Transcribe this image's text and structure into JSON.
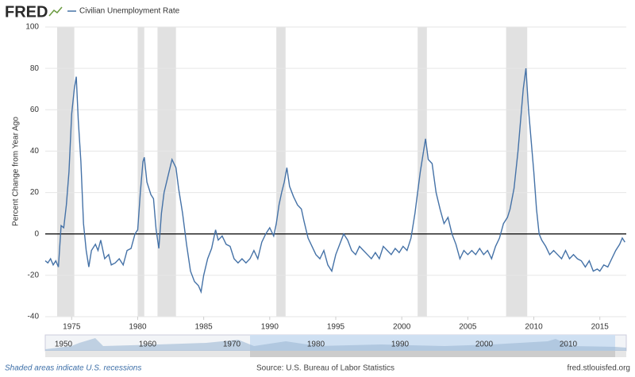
{
  "logo": "FRED",
  "footer": {
    "note": "Shaded areas indicate U.S. recessions",
    "source": "Source: U.S. Bureau of Labor Statistics",
    "site": "fred.stlouisfed.org"
  },
  "navigator": {
    "labels": [
      1950,
      1960,
      1970,
      1980,
      1990,
      2000,
      2010
    ]
  },
  "chart_data": {
    "type": "line",
    "y_label": "Percent Change from Year Ago",
    "series": [
      {
        "name": "Civilian Unemployment Rate",
        "color": "#4572a7",
        "values": [
          -13,
          -14,
          -12,
          -15,
          -13,
          -16,
          4,
          3,
          14,
          30,
          58,
          70,
          76,
          55,
          35,
          5,
          -8,
          -16,
          -8,
          -5,
          -8,
          -3,
          -12,
          -10,
          -15,
          -14,
          -12,
          -15,
          -8,
          -7,
          0,
          2,
          20,
          35,
          37,
          25,
          19,
          17,
          2,
          -7,
          10,
          20,
          28,
          36,
          32,
          22,
          10,
          -5,
          -18,
          -23,
          -25,
          -28,
          -20,
          -12,
          -7,
          2,
          -3,
          -1,
          -5,
          -6,
          -12,
          -14,
          -12,
          -14,
          -12,
          -8,
          -12,
          -4,
          0,
          3,
          -1,
          5,
          14,
          20,
          25,
          32,
          23,
          18,
          14,
          12,
          6,
          -2,
          -6,
          -10,
          -12,
          -8,
          -15,
          -18,
          -10,
          -5,
          0,
          -3,
          -8,
          -10,
          -6,
          -8,
          -10,
          -12,
          -9,
          -12,
          -6,
          -8,
          -10,
          -7,
          -9,
          -6,
          -8,
          -2,
          10,
          20,
          30,
          38,
          46,
          36,
          34,
          20,
          12,
          5,
          8,
          0,
          -5,
          -12,
          -8,
          -10,
          -8,
          -10,
          -7,
          -10,
          -8,
          -12,
          -6,
          -2,
          5,
          8,
          12,
          22,
          40,
          55,
          70,
          80,
          60,
          45,
          30,
          12,
          0,
          -3,
          -6,
          -10,
          -8,
          -10,
          -12,
          -8,
          -12,
          -10,
          -12,
          -13,
          -16,
          -13,
          -18,
          -17,
          -18,
          -15,
          -16,
          -12,
          -8,
          -5,
          -2,
          -4
        ]
      }
    ],
    "x": [
      1973.0,
      1973.2,
      1973.4,
      1973.6,
      1973.8,
      1974.0,
      1974.2,
      1974.4,
      1974.6,
      1974.8,
      1975.0,
      1975.2,
      1975.35,
      1975.5,
      1975.7,
      1975.9,
      1976.1,
      1976.3,
      1976.5,
      1976.8,
      1977.0,
      1977.2,
      1977.5,
      1977.8,
      1978.0,
      1978.3,
      1978.6,
      1978.9,
      1979.2,
      1979.5,
      1979.8,
      1980.0,
      1980.2,
      1980.4,
      1980.5,
      1980.7,
      1981.0,
      1981.2,
      1981.4,
      1981.6,
      1981.8,
      1982.0,
      1982.3,
      1982.6,
      1982.9,
      1983.1,
      1983.4,
      1983.7,
      1984.0,
      1984.3,
      1984.6,
      1984.8,
      1985.0,
      1985.3,
      1985.6,
      1985.9,
      1986.1,
      1986.4,
      1986.7,
      1987.0,
      1987.3,
      1987.6,
      1987.9,
      1988.2,
      1988.5,
      1988.8,
      1989.1,
      1989.4,
      1989.7,
      1990.0,
      1990.3,
      1990.5,
      1990.7,
      1990.9,
      1991.1,
      1991.3,
      1991.5,
      1991.8,
      1992.1,
      1992.4,
      1992.6,
      1992.9,
      1993.2,
      1993.5,
      1993.8,
      1994.1,
      1994.4,
      1994.7,
      1995.0,
      1995.3,
      1995.6,
      1995.9,
      1996.2,
      1996.5,
      1996.8,
      1997.1,
      1997.4,
      1997.7,
      1998.0,
      1998.3,
      1998.6,
      1998.9,
      1999.2,
      1999.5,
      1999.8,
      2000.1,
      2000.4,
      2000.7,
      2001.0,
      2001.2,
      2001.4,
      2001.6,
      2001.8,
      2002.0,
      2002.3,
      2002.6,
      2002.9,
      2003.2,
      2003.5,
      2003.8,
      2004.1,
      2004.4,
      2004.7,
      2005.0,
      2005.3,
      2005.6,
      2005.9,
      2006.2,
      2006.5,
      2006.8,
      2007.1,
      2007.4,
      2007.7,
      2008.0,
      2008.2,
      2008.5,
      2008.8,
      2009.0,
      2009.2,
      2009.4,
      2009.6,
      2009.8,
      2010.0,
      2010.2,
      2010.4,
      2010.6,
      2010.9,
      2011.2,
      2011.5,
      2011.8,
      2012.1,
      2012.4,
      2012.7,
      2013.0,
      2013.3,
      2013.6,
      2013.9,
      2014.2,
      2014.5,
      2014.8,
      2015.0,
      2015.3,
      2015.6,
      2015.9,
      2016.2,
      2016.5,
      2016.7,
      2016.9
    ],
    "recessions": [
      [
        1973.9,
        1975.2
      ],
      [
        1980.0,
        1980.5
      ],
      [
        1981.5,
        1982.9
      ],
      [
        1990.5,
        1991.2
      ],
      [
        2001.2,
        2001.9
      ],
      [
        2007.9,
        2009.5
      ]
    ],
    "recession_color": "#e1e1e1",
    "xlim": [
      1973,
      2017
    ],
    "ylim": [
      -40,
      100
    ],
    "xticks": [
      1975,
      1980,
      1985,
      1990,
      1995,
      2000,
      2005,
      2010,
      2015
    ],
    "yticks": [
      -40,
      -20,
      0,
      20,
      40,
      60,
      80,
      100
    ],
    "grid": true,
    "zero_line": true
  }
}
